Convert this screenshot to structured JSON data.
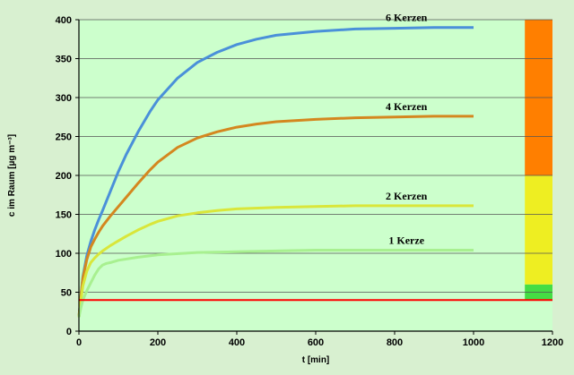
{
  "chart_data": {
    "type": "line",
    "xlabel": "t [min]",
    "ylabel": "c im Raum [µg m⁻³]",
    "xlim": [
      0,
      1200
    ],
    "ylim": [
      0,
      400
    ],
    "xticks": [
      0,
      200,
      400,
      600,
      800,
      1000,
      1200
    ],
    "yticks": [
      0,
      50,
      100,
      150,
      200,
      250,
      300,
      350,
      400
    ],
    "grid": "horizontal",
    "background_color": "#d8f0d0",
    "plot_background_color": "#ccffcc",
    "series": [
      {
        "name": "6 Kerzen",
        "color": "#4a90d9",
        "x": [
          0,
          5,
          10,
          20,
          30,
          40,
          50,
          60,
          80,
          100,
          120,
          150,
          180,
          200,
          250,
          300,
          350,
          400,
          450,
          500,
          600,
          700,
          800,
          900,
          1000
        ],
        "y": [
          18,
          45,
          70,
          97,
          115,
          130,
          143,
          155,
          180,
          205,
          227,
          256,
          282,
          297,
          325,
          345,
          358,
          368,
          375,
          380,
          385,
          388,
          389,
          390,
          390
        ]
      },
      {
        "name": "4 Kerzen",
        "color": "#d4871f",
        "x": [
          0,
          5,
          10,
          20,
          30,
          40,
          50,
          60,
          80,
          100,
          120,
          150,
          180,
          200,
          250,
          300,
          350,
          400,
          450,
          500,
          600,
          700,
          800,
          900,
          1000
        ],
        "y": [
          18,
          45,
          68,
          92,
          108,
          118,
          127,
          135,
          148,
          160,
          172,
          190,
          207,
          217,
          236,
          248,
          256,
          262,
          266,
          269,
          272,
          274,
          275,
          276,
          276
        ]
      },
      {
        "name": "2 Kerzen",
        "color": "#d9e63a",
        "x": [
          0,
          5,
          10,
          20,
          30,
          40,
          50,
          60,
          80,
          100,
          120,
          150,
          180,
          200,
          250,
          300,
          350,
          400,
          500,
          600,
          700,
          800,
          900,
          1000
        ],
        "y": [
          18,
          40,
          58,
          77,
          88,
          94,
          99,
          103,
          110,
          116,
          122,
          130,
          137,
          141,
          148,
          152,
          155,
          157,
          159,
          160,
          161,
          161,
          161,
          161
        ]
      },
      {
        "name": "1 Kerze",
        "color": "#a8f090",
        "x": [
          0,
          5,
          10,
          20,
          30,
          40,
          50,
          60,
          70,
          80,
          100,
          150,
          200,
          300,
          400,
          500,
          600,
          800,
          1000
        ],
        "y": [
          18,
          30,
          40,
          52,
          62,
          72,
          80,
          85,
          87,
          88,
          91,
          95,
          98,
          101,
          102,
          103,
          104,
          104,
          104
        ]
      }
    ],
    "reference_line": {
      "y": 40,
      "color": "#ff0000"
    },
    "color_bar": {
      "x_range": [
        1130,
        1200
      ],
      "bands": [
        {
          "from": 0,
          "to": 40,
          "color": "#ccffcc"
        },
        {
          "from": 40,
          "to": 50,
          "color": "#44dd44"
        },
        {
          "from": 50,
          "to": 60,
          "color": "#44dd44"
        },
        {
          "from": 60,
          "to": 200,
          "color": "#eeee22"
        },
        {
          "from": 200,
          "to": 400,
          "color": "#ff7f00"
        }
      ]
    }
  }
}
